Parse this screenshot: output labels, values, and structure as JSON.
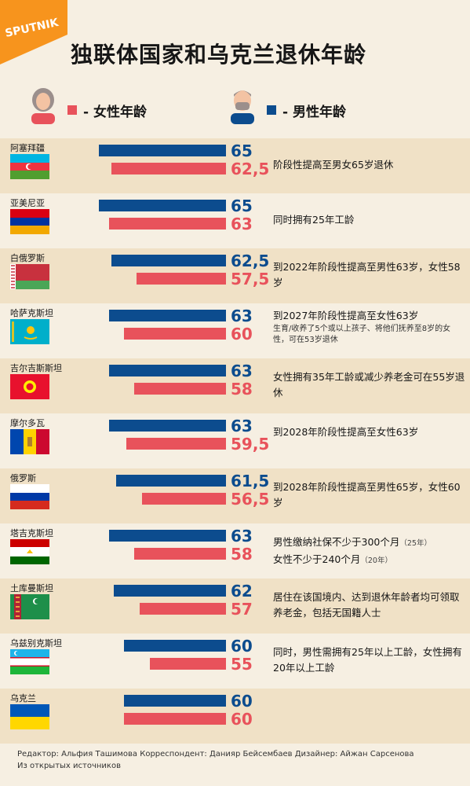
{
  "brand": "SPUTNIK",
  "title": "独联体国家和乌克兰退休年龄",
  "legend": {
    "female": "- 女性年龄",
    "male": "- 男性年龄"
  },
  "colors": {
    "male": "#0c4c8e",
    "female": "#e8525b",
    "bg": "#f6efe2",
    "row_alt": "#f0e1c6"
  },
  "chart_data": {
    "type": "bar",
    "title": "独联体国家和乌克兰退休年龄",
    "categories": [
      "阿塞拜疆",
      "亚美尼亚",
      "白俄罗斯",
      "哈萨克斯坦",
      "吉尔吉斯斯坦",
      "摩尔多瓦",
      "俄罗斯",
      "塔吉克斯坦",
      "土库曼斯坦",
      "乌兹别克斯坦",
      "乌克兰"
    ],
    "series": [
      {
        "name": "男性年龄",
        "values": [
          65,
          65,
          62.5,
          63,
          63,
          63,
          61.5,
          63,
          62,
          60,
          60
        ],
        "labels": [
          "65",
          "65",
          "62,5",
          "63",
          "63",
          "63",
          "61,5",
          "63",
          "62",
          "60",
          "60"
        ]
      },
      {
        "name": "女性年龄",
        "values": [
          62.5,
          63,
          57.5,
          60,
          58,
          59.5,
          56.5,
          58,
          57,
          55,
          60
        ],
        "labels": [
          "62,5",
          "63",
          "57,5",
          "60",
          "58",
          "59,5",
          "56,5",
          "58",
          "57",
          "55",
          "60"
        ]
      }
    ],
    "notes": [
      {
        "main": "阶段性提高至男女65岁退休"
      },
      {
        "main": "同时拥有25年工龄"
      },
      {
        "main": "到2022年阶段性提高至男性63岁，女性58岁"
      },
      {
        "main": "到2027年阶段性提高至女性63岁",
        "sub": "生育/收养了5个或以上孩子、将他们抚养至8岁的女性，可在53岁退休"
      },
      {
        "main": "女性拥有35年工龄或减少养老金可在55岁退休"
      },
      {
        "main": "到2028年阶段性提高至女性63岁"
      },
      {
        "main": "到2028年阶段性提高至男性65岁，女性60岁"
      },
      {
        "line1": "男性缴纳社保不少于300个月",
        "line1_small": "（25年）",
        "line2": "女性不少于240个月",
        "line2_small": "（20年）"
      },
      {
        "main": "居住在该国境内、达到退休年龄者均可领取养老金，包括无国籍人士"
      },
      {
        "main": "同时，男性需拥有25年以上工龄，女性拥有20年以上工龄"
      },
      {
        "main": ""
      }
    ],
    "flags": [
      "azerbaijan",
      "armenia",
      "belarus",
      "kazakhstan",
      "kyrgyzstan",
      "moldova",
      "russia",
      "tajikistan",
      "turkmenistan",
      "uzbekistan",
      "ukraine"
    ],
    "grid": false,
    "legend_position": "top"
  },
  "footer": {
    "line1": "Редактор: Альфия Ташимова   Корреспондент: Данияр Бейсембаев   Дизайнер: Айжан Сарсенова",
    "line2": "Из открытых источников"
  }
}
